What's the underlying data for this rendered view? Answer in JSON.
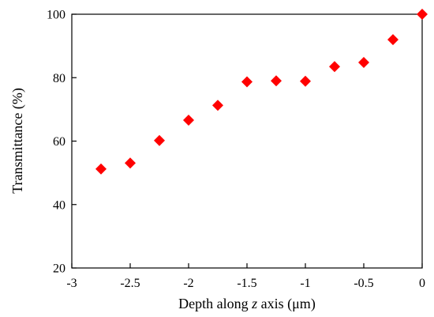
{
  "chart_data": {
    "type": "scatter",
    "title": "",
    "xlabel_parts": [
      "Depth along ",
      "z",
      " axis (μm)"
    ],
    "ylabel": "Transmittance (%)",
    "xlim": [
      -3,
      0
    ],
    "ylim": [
      20,
      100
    ],
    "xticks": [
      -3,
      -2.5,
      -2,
      -1.5,
      -1,
      -0.5,
      0
    ],
    "xtick_labels": [
      "-3",
      "-2.5",
      "-2",
      "-1.5",
      "-1",
      "-0.5",
      "0"
    ],
    "yticks": [
      20,
      40,
      60,
      80,
      100
    ],
    "ytick_labels": [
      "20",
      "40",
      "60",
      "80",
      "100"
    ],
    "grid": false,
    "marker": "diamond",
    "marker_color": "#ff0000",
    "series": [
      {
        "x": [
          -2.75,
          -2.5,
          -2.25,
          -2.0,
          -1.75,
          -1.5,
          -1.25,
          -1.0,
          -0.75,
          -0.5,
          -0.25,
          0
        ],
        "y": [
          51.2,
          53.1,
          60.2,
          66.6,
          71.3,
          78.7,
          79.0,
          78.9,
          83.5,
          84.8,
          92.0,
          100.0
        ]
      }
    ]
  }
}
